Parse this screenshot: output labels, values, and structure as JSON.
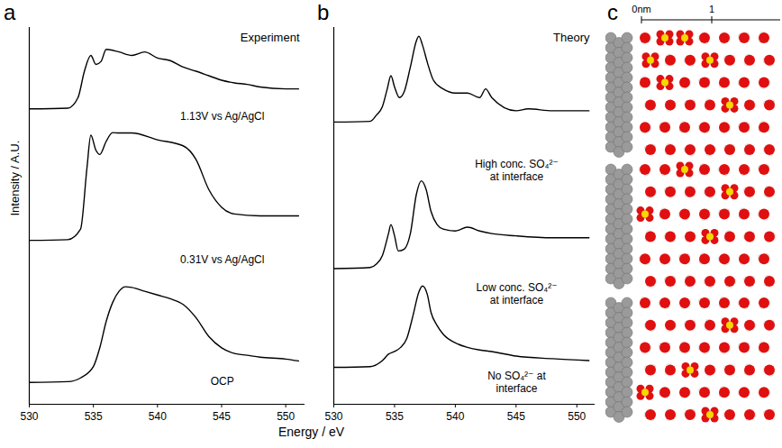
{
  "figure": {
    "xlabel": "Energy / eV"
  },
  "chart_data": [
    {
      "type": "line",
      "panel": "a",
      "title": "Experiment",
      "ylabel": "Intensity / A.U.",
      "xlim": [
        530,
        551.5
      ],
      "xticks": [
        530,
        535,
        540,
        545,
        550
      ],
      "ylim": [
        0,
        10
      ],
      "tick_labels": "x",
      "grid": false,
      "series": [
        {
          "name": "1.13V vs Ag/AgCl",
          "color": "#000000",
          "x": [
            530,
            533,
            533.8,
            534.3,
            534.8,
            535.2,
            535.6,
            536,
            537,
            538,
            539,
            540,
            541,
            542,
            543,
            544,
            545,
            546,
            547,
            548,
            550,
            551
          ],
          "values": [
            7.84,
            7.86,
            8.14,
            8.84,
            9.26,
            9.02,
            9.1,
            9.42,
            9.35,
            9.26,
            9.35,
            9.19,
            9.12,
            8.95,
            8.84,
            8.72,
            8.6,
            8.53,
            8.49,
            8.42,
            8.37,
            8.37
          ]
        },
        {
          "name": "0.31V vs Ag/AgCl",
          "color": "#000000",
          "x": [
            530,
            533,
            534,
            534.5,
            534.8,
            535.2,
            535.5,
            536,
            536.5,
            537,
            538,
            540,
            542,
            543,
            544,
            545,
            546,
            548,
            551
          ],
          "values": [
            4.35,
            4.37,
            4.65,
            6.28,
            7.14,
            6.74,
            6.63,
            6.98,
            7.21,
            7.2,
            7.2,
            7.02,
            6.86,
            6.5,
            5.7,
            5.23,
            5.05,
            5.0,
            5.0
          ]
        },
        {
          "name": "OCP",
          "color": "#000000",
          "x": [
            530,
            533,
            534,
            535,
            535.5,
            536,
            536.5,
            537,
            537.5,
            538,
            539,
            540,
            541,
            542,
            543,
            544,
            545,
            546,
            547,
            548,
            550,
            551
          ],
          "values": [
            0.58,
            0.6,
            0.7,
            1.0,
            1.5,
            2.2,
            2.7,
            3.0,
            3.12,
            3.1,
            3.0,
            2.9,
            2.8,
            2.65,
            2.3,
            1.8,
            1.5,
            1.35,
            1.3,
            1.25,
            1.2,
            1.15
          ]
        }
      ]
    },
    {
      "type": "line",
      "panel": "b",
      "title": "Theory",
      "xlim": [
        530,
        551.5
      ],
      "xticks": [
        530,
        535,
        540,
        545,
        550
      ],
      "ylim": [
        0,
        10
      ],
      "tick_labels": "x",
      "grid": false,
      "series": [
        {
          "name": "High conc. SO₄²⁻ at interface",
          "color": "#000000",
          "x": [
            530,
            533,
            533.5,
            534,
            534.4,
            534.7,
            535,
            535.4,
            535.8,
            536.3,
            536.8,
            537,
            537.3,
            537.7,
            538.2,
            539,
            540,
            541,
            542,
            542.5,
            543,
            545,
            546,
            548,
            551
          ],
          "values": [
            7.49,
            7.51,
            7.67,
            7.9,
            8.37,
            8.72,
            8.42,
            8.14,
            8.3,
            8.95,
            9.65,
            9.77,
            9.53,
            9.07,
            8.6,
            8.37,
            8.26,
            8.26,
            8.14,
            8.37,
            8.14,
            7.79,
            7.84,
            7.79,
            7.79
          ]
        },
        {
          "name": "Low conc. SO₄²⁻ at interface",
          "color": "#000000",
          "x": [
            530,
            533,
            533.5,
            534,
            534.5,
            534.7,
            535,
            535.3,
            535.8,
            536.3,
            536.8,
            537.2,
            537.6,
            538,
            538.5,
            539,
            540,
            541,
            542,
            543,
            545,
            548,
            551
          ],
          "values": [
            3.6,
            3.63,
            3.72,
            3.95,
            4.53,
            4.77,
            4.47,
            4.07,
            4.12,
            4.53,
            5.58,
            5.93,
            5.7,
            5.12,
            4.77,
            4.65,
            4.6,
            4.7,
            4.6,
            4.53,
            4.47,
            4.42,
            4.42
          ]
        },
        {
          "name": "No SO₄²⁻ at interface",
          "color": "#000000",
          "x": [
            530,
            533,
            534,
            534.5,
            535,
            535.5,
            536,
            536.5,
            537,
            537.3,
            537.7,
            538,
            538.5,
            539,
            540,
            541,
            542,
            543,
            545,
            548,
            551
          ],
          "values": [
            0.98,
            1.0,
            1.16,
            1.33,
            1.4,
            1.51,
            1.74,
            2.33,
            2.98,
            3.14,
            2.91,
            2.44,
            2.09,
            1.86,
            1.63,
            1.51,
            1.44,
            1.4,
            1.28,
            1.21,
            1.16
          ]
        }
      ]
    }
  ],
  "diagram": {
    "panel": "c",
    "scale_bar": {
      "start_label": "0nm",
      "tick_label": "1"
    }
  }
}
